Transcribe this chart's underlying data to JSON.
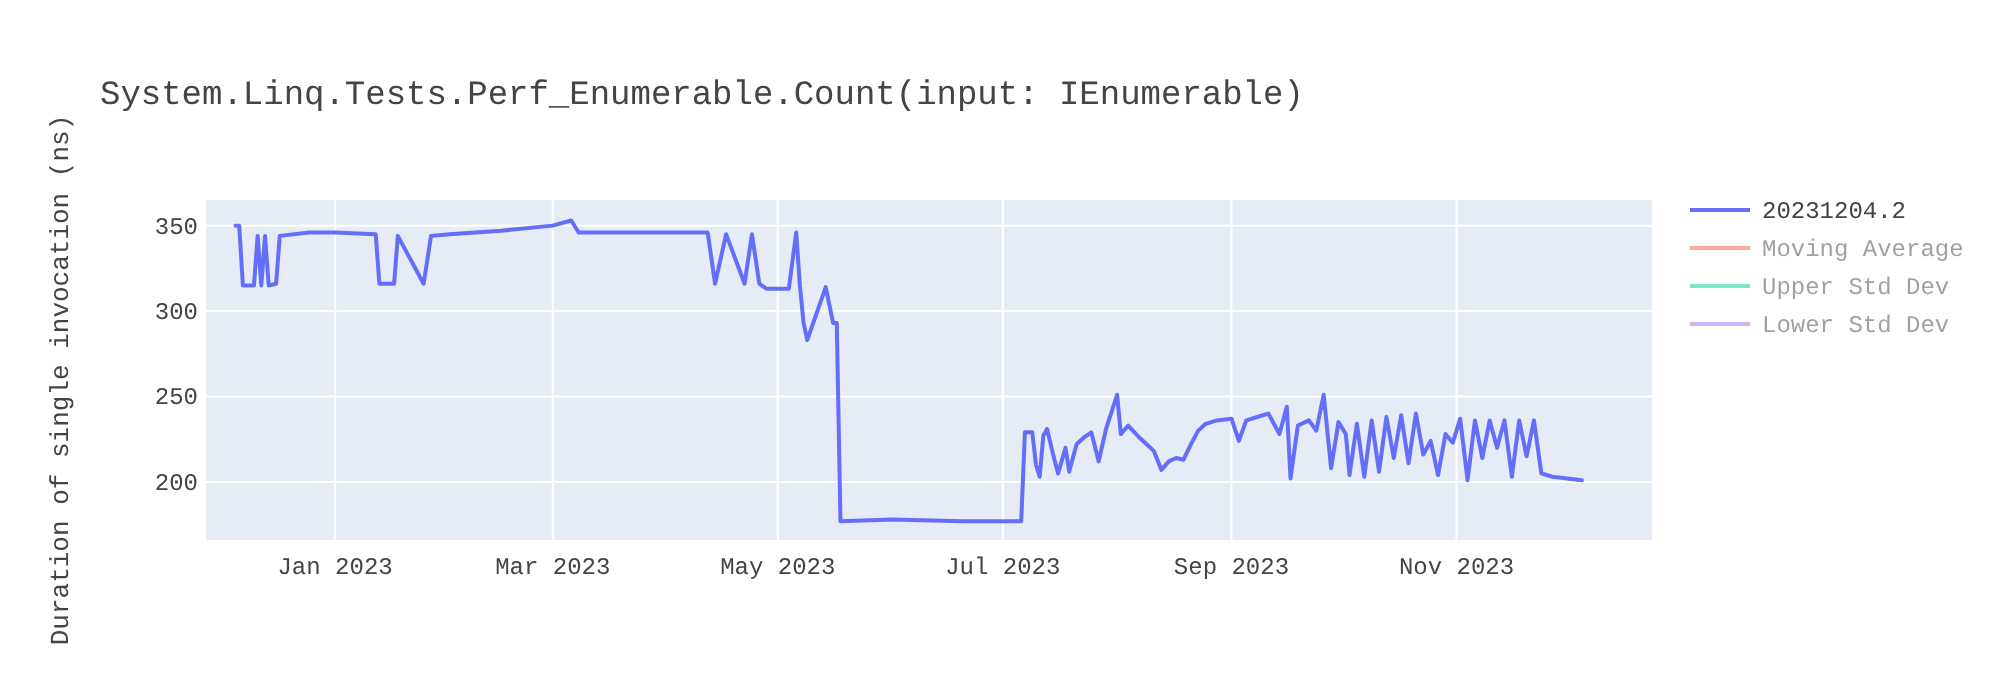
{
  "chart_data": {
    "type": "line",
    "title": "System.Linq.Tests.Perf_Enumerable.Count(input: IEnumerable)",
    "ylabel": "Duration of single invocation (ns)",
    "xlim": [
      "2022-11-27",
      "2023-12-24"
    ],
    "xticks": [
      {
        "value": "2023-01-01",
        "label": "Jan 2023"
      },
      {
        "value": "2023-03-01",
        "label": "Mar 2023"
      },
      {
        "value": "2023-05-01",
        "label": "May 2023"
      },
      {
        "value": "2023-07-01",
        "label": "Jul 2023"
      },
      {
        "value": "2023-09-01",
        "label": "Sep 2023"
      },
      {
        "value": "2023-11-01",
        "label": "Nov 2023"
      }
    ],
    "ylim": [
      166,
      365
    ],
    "yticks": [
      200,
      250,
      300,
      350
    ],
    "grid": true,
    "legend": "right",
    "line_style": "solid",
    "marker": "none",
    "series": [
      {
        "name": "20231204.2",
        "color": "#636efa",
        "x": [
          "2022-12-05",
          "2022-12-06",
          "2022-12-07",
          "2022-12-10",
          "2022-12-11",
          "2022-12-12",
          "2022-12-13",
          "2022-12-14",
          "2022-12-16",
          "2022-12-17",
          "2022-12-25",
          "2023-01-01",
          "2023-01-12",
          "2023-01-13",
          "2023-01-17",
          "2023-01-18",
          "2023-01-25",
          "2023-01-27",
          "2023-02-01",
          "2023-02-15",
          "2023-03-01",
          "2023-03-06",
          "2023-03-08",
          "2023-04-01",
          "2023-04-12",
          "2023-04-14",
          "2023-04-17",
          "2023-04-22",
          "2023-04-24",
          "2023-04-26",
          "2023-04-28",
          "2023-05-04",
          "2023-05-06",
          "2023-05-07",
          "2023-05-08",
          "2023-05-09",
          "2023-05-14",
          "2023-05-16",
          "2023-05-17",
          "2023-05-18",
          "2023-06-01",
          "2023-06-20",
          "2023-07-06",
          "2023-07-07",
          "2023-07-09",
          "2023-07-10",
          "2023-07-11",
          "2023-07-12",
          "2023-07-13",
          "2023-07-15",
          "2023-07-16",
          "2023-07-18",
          "2023-07-19",
          "2023-07-21",
          "2023-07-23",
          "2023-07-25",
          "2023-07-27",
          "2023-07-29",
          "2023-08-01",
          "2023-08-02",
          "2023-08-04",
          "2023-08-07",
          "2023-08-09",
          "2023-08-11",
          "2023-08-13",
          "2023-08-15",
          "2023-08-17",
          "2023-08-19",
          "2023-08-21",
          "2023-08-23",
          "2023-08-25",
          "2023-08-28",
          "2023-09-01",
          "2023-09-03",
          "2023-09-05",
          "2023-09-08",
          "2023-09-11",
          "2023-09-14",
          "2023-09-16",
          "2023-09-17",
          "2023-09-19",
          "2023-09-22",
          "2023-09-24",
          "2023-09-26",
          "2023-09-28",
          "2023-09-30",
          "2023-10-02",
          "2023-10-03",
          "2023-10-05",
          "2023-10-07",
          "2023-10-09",
          "2023-10-11",
          "2023-10-13",
          "2023-10-15",
          "2023-10-17",
          "2023-10-19",
          "2023-10-21",
          "2023-10-23",
          "2023-10-25",
          "2023-10-27",
          "2023-10-29",
          "2023-10-31",
          "2023-11-02",
          "2023-11-04",
          "2023-11-06",
          "2023-11-08",
          "2023-11-10",
          "2023-11-12",
          "2023-11-14",
          "2023-11-16",
          "2023-11-18",
          "2023-11-20",
          "2023-11-22",
          "2023-11-24",
          "2023-11-27",
          "2023-12-01",
          "2023-12-05"
        ],
        "values": [
          350,
          350,
          315,
          315,
          344,
          315,
          344,
          315,
          316,
          344,
          346,
          346,
          345,
          316,
          316,
          344,
          316,
          344,
          345,
          347,
          350,
          353,
          346,
          346,
          346,
          316,
          345,
          316,
          345,
          316,
          313,
          313,
          346,
          315,
          293,
          283,
          314,
          293,
          293,
          177,
          178,
          177,
          177,
          229,
          229,
          210,
          203,
          227,
          231,
          213,
          205,
          220,
          206,
          222,
          226,
          229,
          212,
          231,
          251,
          228,
          233,
          226,
          222,
          218,
          207,
          212,
          214,
          213,
          222,
          230,
          234,
          236,
          237,
          224,
          236,
          238,
          240,
          228,
          244,
          202,
          233,
          236,
          230,
          251,
          208,
          235,
          228,
          204,
          234,
          203,
          236,
          206,
          238,
          214,
          239,
          211,
          240,
          216,
          224,
          204,
          228,
          223,
          237,
          201,
          236,
          214,
          236,
          220,
          236,
          203,
          236,
          215,
          236,
          205,
          203,
          202,
          201
        ]
      },
      {
        "name": "Moving Average",
        "color": "#ef553b"
      },
      {
        "name": "Upper Std Dev",
        "color": "#00cc96"
      },
      {
        "name": "Lower Std Dev",
        "color": "#ab63fa"
      }
    ]
  }
}
